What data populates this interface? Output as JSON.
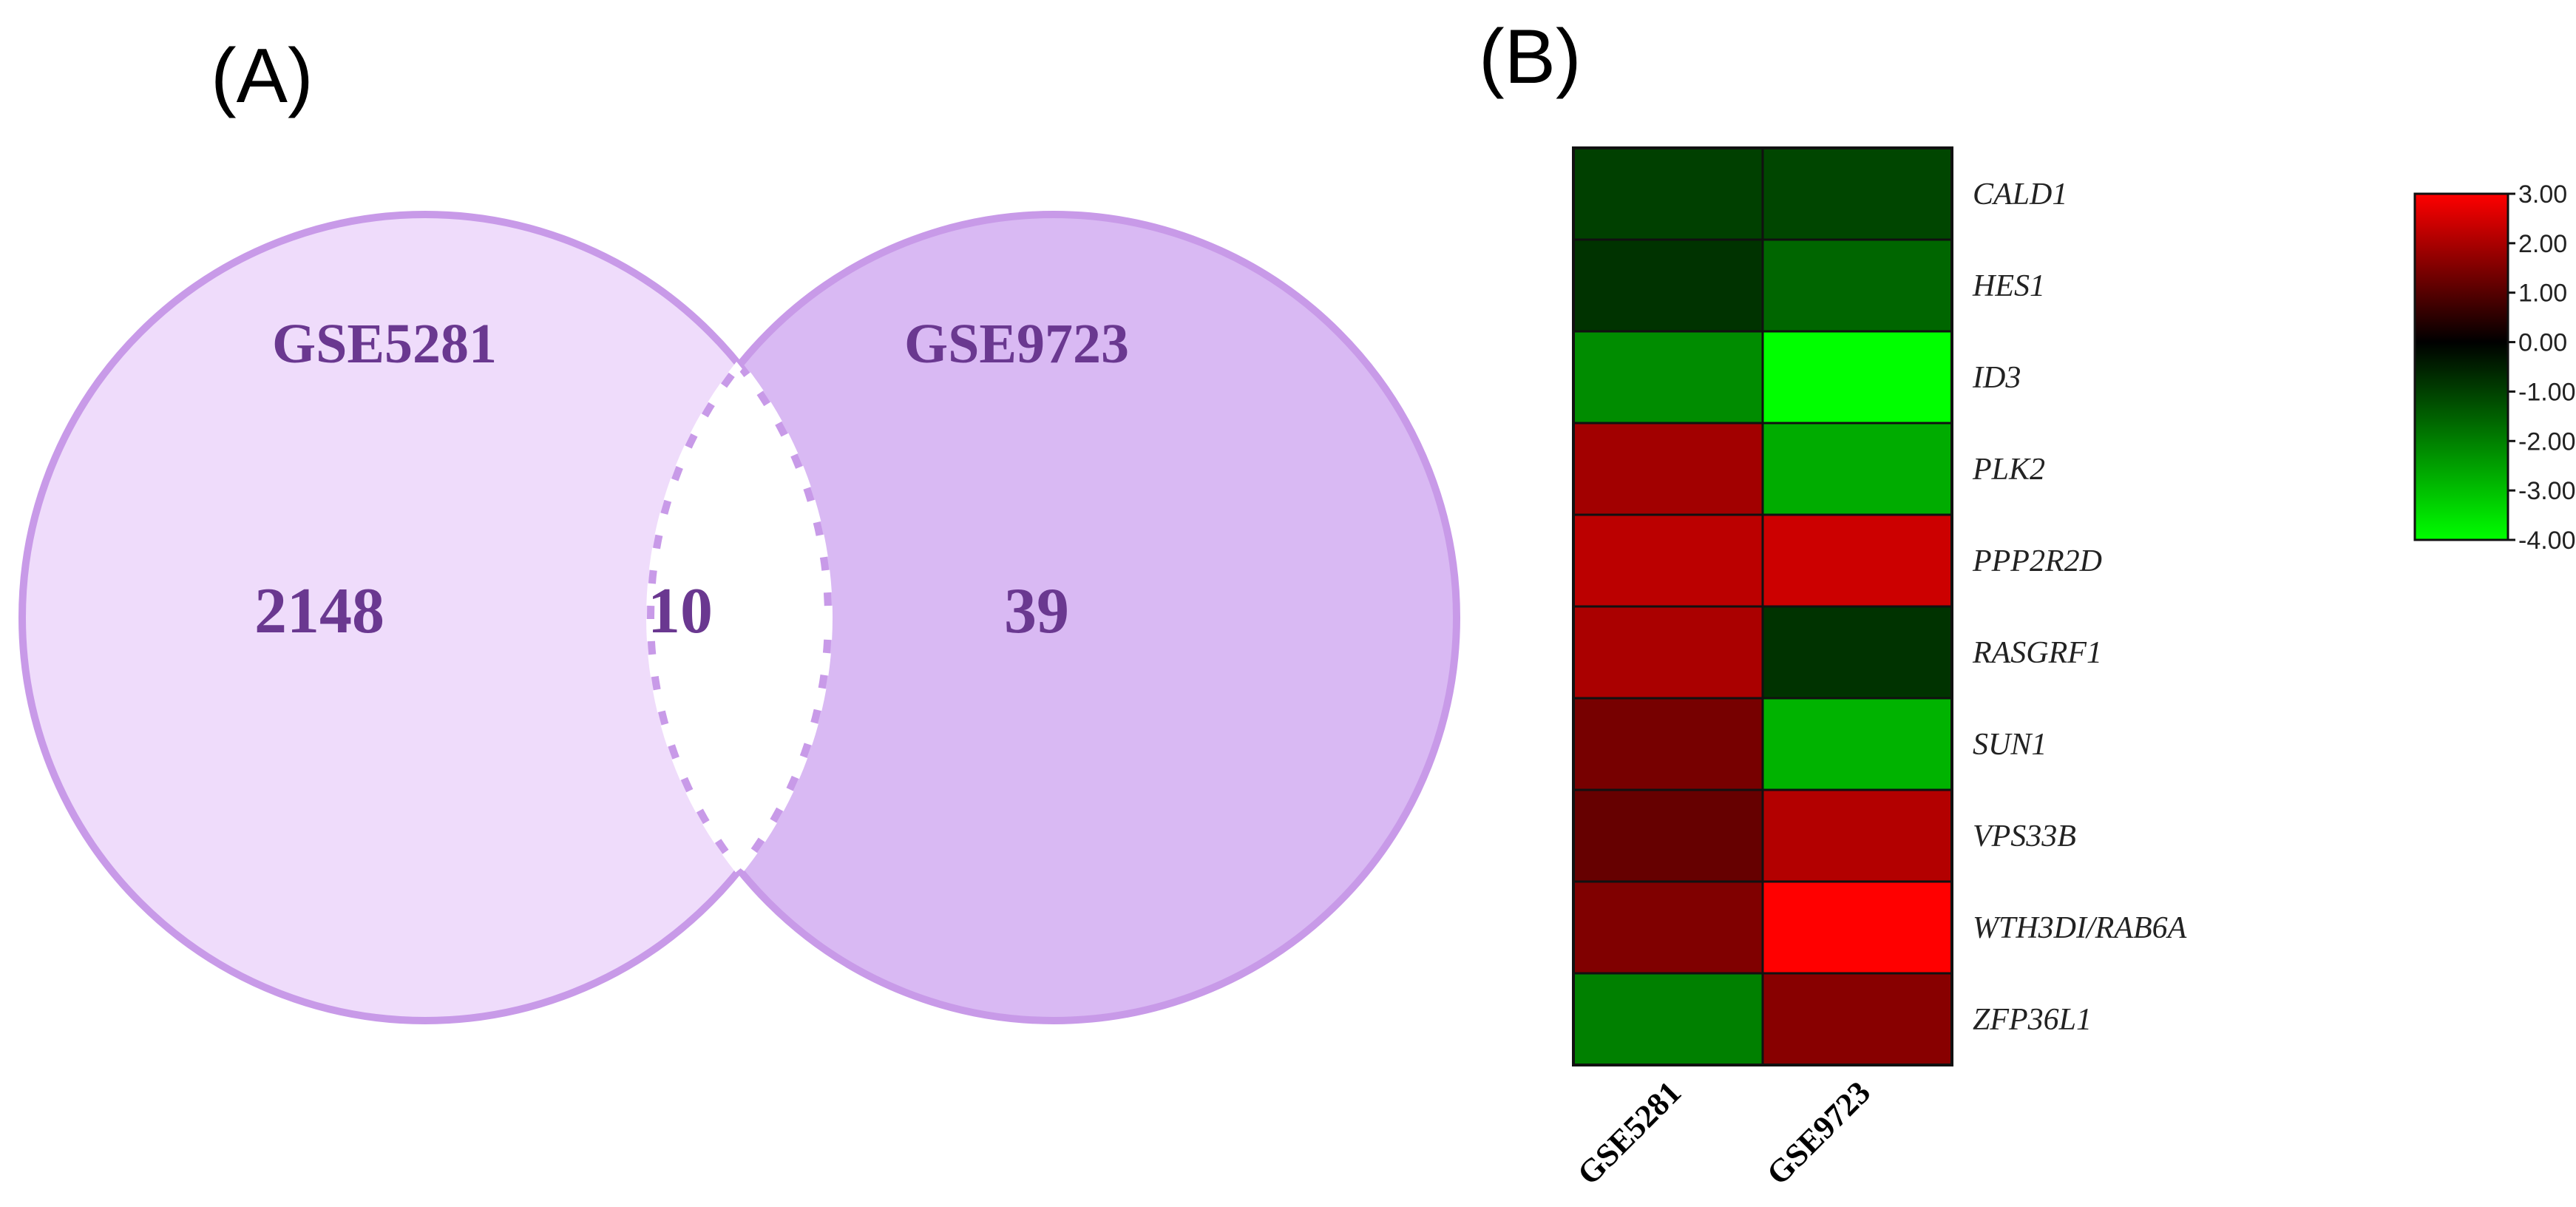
{
  "panels": {
    "a_label": "(A)",
    "b_label": "(B)"
  },
  "venn": {
    "sets": [
      {
        "name": "GSE5281",
        "only_count": "2148",
        "color": "#efdcfb"
      },
      {
        "name": "GSE9723",
        "only_count": "39",
        "color": "#d9b9f3"
      }
    ],
    "intersection": "10",
    "stroke_color": "#c89ae8"
  },
  "chart_data": {
    "type": "heatmap",
    "title": "",
    "columns": [
      "GSE5281",
      "GSE9723"
    ],
    "rows": [
      "CALD1",
      "HES1",
      "ID3",
      "PLK2",
      "PPP2R2D",
      "RASGRF1",
      "SUN1",
      "VPS33B",
      "WTH3DI/RAB6A",
      "ZFP36L1"
    ],
    "values": [
      [
        -1.0,
        -1.1
      ],
      [
        -0.8,
        -1.6
      ],
      [
        -2.2,
        -4.0
      ],
      [
        1.9,
        -2.7
      ],
      [
        2.2,
        2.4
      ],
      [
        2.0,
        -0.8
      ],
      [
        1.4,
        -2.8
      ],
      [
        1.2,
        2.1
      ],
      [
        1.5,
        3.0
      ],
      [
        -2.0,
        1.6
      ]
    ],
    "colorbar": {
      "min": -4.0,
      "max": 3.0,
      "ticks": [
        "3.00",
        "2.00",
        "1.00",
        "0.00",
        "-1.00",
        "-2.00",
        "-3.00",
        "-4.00"
      ],
      "tick_values": [
        3,
        2,
        1,
        0,
        -1,
        -2,
        -3,
        -4
      ],
      "colors": {
        "high": "#ff0000",
        "mid": "#000000",
        "low": "#00ff00"
      }
    }
  }
}
